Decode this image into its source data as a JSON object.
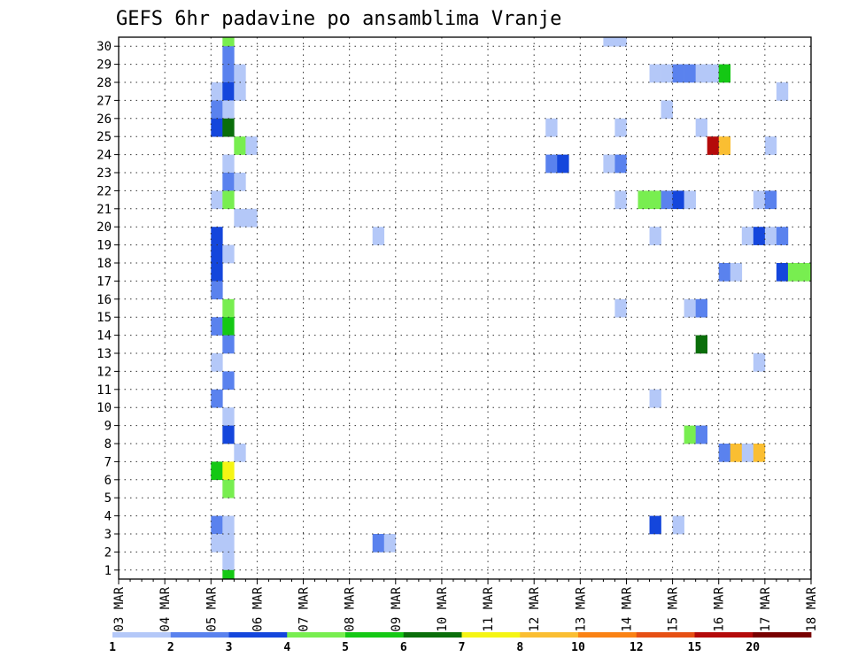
{
  "chart_data": {
    "type": "heatmap",
    "title": "GEFS 6hr padavine po ansamblima Vranje",
    "x_labels": [
      "03 MAR",
      "04 MAR",
      "05 MAR",
      "06 MAR",
      "07 MAR",
      "08 MAR",
      "09 MAR",
      "10 MAR",
      "11 MAR",
      "12 MAR",
      "13 MAR",
      "14 MAR",
      "15 MAR",
      "16 MAR",
      "17 MAR",
      "18 MAR"
    ],
    "y_labels": [
      "1",
      "2",
      "3",
      "4",
      "5",
      "6",
      "7",
      "8",
      "9",
      "10",
      "11",
      "12",
      "13",
      "14",
      "15",
      "16",
      "17",
      "18",
      "19",
      "20",
      "21",
      "22",
      "23",
      "24",
      "25",
      "26",
      "27",
      "28",
      "29",
      "30"
    ],
    "x_range_steps": [
      0,
      60
    ],
    "y_range": [
      0,
      30
    ],
    "steps_per_day": 4,
    "legend_labels": [
      "1",
      "2",
      "3",
      "4",
      "5",
      "6",
      "7",
      "8",
      "10",
      "12",
      "15",
      "20"
    ],
    "legend_colors": [
      "#b4c8f8",
      "#5a82ee",
      "#1446dc",
      "#78ee50",
      "#14c814",
      "#0a6e0a",
      "#f5f514",
      "#fabe32",
      "#fa8214",
      "#e65014",
      "#b40a0a",
      "#780000"
    ],
    "cells": [
      {
        "t": 9,
        "m": 30,
        "level": 4
      },
      {
        "t": 9,
        "m": 29,
        "level": 2
      },
      {
        "t": 9,
        "m": 28,
        "level": 2
      },
      {
        "t": 10,
        "m": 28,
        "level": 1
      },
      {
        "t": 8,
        "m": 27,
        "level": 1
      },
      {
        "t": 9,
        "m": 27,
        "level": 3
      },
      {
        "t": 10,
        "m": 27,
        "level": 1
      },
      {
        "t": 8,
        "m": 26,
        "level": 2
      },
      {
        "t": 9,
        "m": 26,
        "level": 1
      },
      {
        "t": 8,
        "m": 25,
        "level": 3
      },
      {
        "t": 9,
        "m": 25,
        "level": 6
      },
      {
        "t": 10,
        "m": 24,
        "level": 4
      },
      {
        "t": 11,
        "m": 24,
        "level": 1
      },
      {
        "t": 9,
        "m": 23,
        "level": 1
      },
      {
        "t": 9,
        "m": 22,
        "level": 2
      },
      {
        "t": 10,
        "m": 22,
        "level": 1
      },
      {
        "t": 8,
        "m": 21,
        "level": 1
      },
      {
        "t": 9,
        "m": 21,
        "level": 4
      },
      {
        "t": 10,
        "m": 20,
        "level": 1
      },
      {
        "t": 11,
        "m": 20,
        "level": 1
      },
      {
        "t": 8,
        "m": 19,
        "level": 3
      },
      {
        "t": 8,
        "m": 18,
        "level": 3
      },
      {
        "t": 9,
        "m": 18,
        "level": 1
      },
      {
        "t": 8,
        "m": 17,
        "level": 3
      },
      {
        "t": 8,
        "m": 16,
        "level": 2
      },
      {
        "t": 9,
        "m": 15,
        "level": 4
      },
      {
        "t": 8,
        "m": 14,
        "level": 2
      },
      {
        "t": 9,
        "m": 14,
        "level": 5
      },
      {
        "t": 9,
        "m": 13,
        "level": 2
      },
      {
        "t": 8,
        "m": 12,
        "level": 1
      },
      {
        "t": 9,
        "m": 11,
        "level": 2
      },
      {
        "t": 8,
        "m": 10,
        "level": 2
      },
      {
        "t": 9,
        "m": 9,
        "level": 1
      },
      {
        "t": 9,
        "m": 8,
        "level": 3
      },
      {
        "t": 10,
        "m": 7,
        "level": 1
      },
      {
        "t": 8,
        "m": 6,
        "level": 5
      },
      {
        "t": 9,
        "m": 6,
        "level": 7
      },
      {
        "t": 9,
        "m": 5,
        "level": 4
      },
      {
        "t": 8,
        "m": 3,
        "level": 2
      },
      {
        "t": 9,
        "m": 3,
        "level": 1
      },
      {
        "t": 8,
        "m": 2,
        "level": 1
      },
      {
        "t": 9,
        "m": 2,
        "level": 1
      },
      {
        "t": 9,
        "m": 1,
        "level": 1
      },
      {
        "t": 9,
        "m": 0,
        "level": 5
      },
      {
        "t": 22,
        "m": 19,
        "level": 1
      },
      {
        "t": 22,
        "m": 2,
        "level": 2
      },
      {
        "t": 23,
        "m": 2,
        "level": 1
      },
      {
        "t": 42,
        "m": 30,
        "level": 1
      },
      {
        "t": 43,
        "m": 30,
        "level": 1
      },
      {
        "t": 46,
        "m": 28,
        "level": 1
      },
      {
        "t": 47,
        "m": 28,
        "level": 1
      },
      {
        "t": 48,
        "m": 28,
        "level": 2
      },
      {
        "t": 49,
        "m": 28,
        "level": 2
      },
      {
        "t": 50,
        "m": 28,
        "level": 1
      },
      {
        "t": 51,
        "m": 28,
        "level": 1
      },
      {
        "t": 52,
        "m": 28,
        "level": 5
      },
      {
        "t": 57,
        "m": 27,
        "level": 1
      },
      {
        "t": 47,
        "m": 26,
        "level": 1
      },
      {
        "t": 37,
        "m": 25,
        "level": 1
      },
      {
        "t": 43,
        "m": 25,
        "level": 1
      },
      {
        "t": 50,
        "m": 25,
        "level": 1
      },
      {
        "t": 51,
        "m": 24,
        "level": 11
      },
      {
        "t": 52,
        "m": 24,
        "level": 8
      },
      {
        "t": 56,
        "m": 24,
        "level": 1
      },
      {
        "t": 37,
        "m": 23,
        "level": 2
      },
      {
        "t": 38,
        "m": 23,
        "level": 3
      },
      {
        "t": 42,
        "m": 23,
        "level": 1
      },
      {
        "t": 43,
        "m": 23,
        "level": 2
      },
      {
        "t": 43,
        "m": 21,
        "level": 1
      },
      {
        "t": 45,
        "m": 21,
        "level": 4
      },
      {
        "t": 46,
        "m": 21,
        "level": 4
      },
      {
        "t": 47,
        "m": 21,
        "level": 2
      },
      {
        "t": 48,
        "m": 21,
        "level": 3
      },
      {
        "t": 49,
        "m": 21,
        "level": 1
      },
      {
        "t": 55,
        "m": 21,
        "level": 1
      },
      {
        "t": 56,
        "m": 21,
        "level": 2
      },
      {
        "t": 46,
        "m": 19,
        "level": 1
      },
      {
        "t": 54,
        "m": 19,
        "level": 1
      },
      {
        "t": 55,
        "m": 19,
        "level": 3
      },
      {
        "t": 56,
        "m": 19,
        "level": 1
      },
      {
        "t": 57,
        "m": 19,
        "level": 2
      },
      {
        "t": 52,
        "m": 17,
        "level": 2
      },
      {
        "t": 53,
        "m": 17,
        "level": 1
      },
      {
        "t": 57,
        "m": 17,
        "level": 3
      },
      {
        "t": 58,
        "m": 17,
        "level": 4
      },
      {
        "t": 59,
        "m": 17,
        "level": 4
      },
      {
        "t": 43,
        "m": 15,
        "level": 1
      },
      {
        "t": 49,
        "m": 15,
        "level": 1
      },
      {
        "t": 50,
        "m": 15,
        "level": 2
      },
      {
        "t": 50,
        "m": 13,
        "level": 6
      },
      {
        "t": 55,
        "m": 12,
        "level": 1
      },
      {
        "t": 46,
        "m": 10,
        "level": 1
      },
      {
        "t": 49,
        "m": 8,
        "level": 4
      },
      {
        "t": 50,
        "m": 8,
        "level": 2
      },
      {
        "t": 52,
        "m": 7,
        "level": 2
      },
      {
        "t": 53,
        "m": 7,
        "level": 8
      },
      {
        "t": 54,
        "m": 7,
        "level": 1
      },
      {
        "t": 55,
        "m": 7,
        "level": 8
      },
      {
        "t": 46,
        "m": 3,
        "level": 3
      },
      {
        "t": 48,
        "m": 3,
        "level": 1
      }
    ]
  }
}
